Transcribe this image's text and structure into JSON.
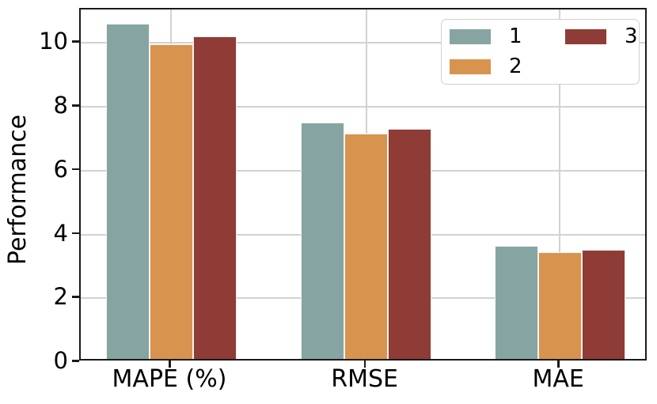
{
  "chart_data": {
    "type": "bar",
    "title": "",
    "xlabel": "",
    "ylabel": "Performance",
    "categories": [
      "MAPE (%)",
      "RMSE",
      "MAE"
    ],
    "series": [
      {
        "name": "1",
        "color": "#86a5a2",
        "values": [
          10.5,
          7.4,
          3.55
        ]
      },
      {
        "name": "2",
        "color": "#d8934f",
        "values": [
          9.85,
          7.05,
          3.35
        ]
      },
      {
        "name": "3",
        "color": "#8e3c35",
        "values": [
          10.1,
          7.2,
          3.42
        ]
      }
    ],
    "yticks": [
      0,
      2,
      4,
      6,
      8,
      10
    ],
    "ylim": [
      0,
      11.05
    ],
    "grid": true,
    "legend_position": "upper right",
    "legend_columns": 2,
    "colors": {
      "grid": "#d2d2d2",
      "spine": "#1a1a1a",
      "background": "#ffffff",
      "legend_border": "#d0d0d0"
    }
  }
}
